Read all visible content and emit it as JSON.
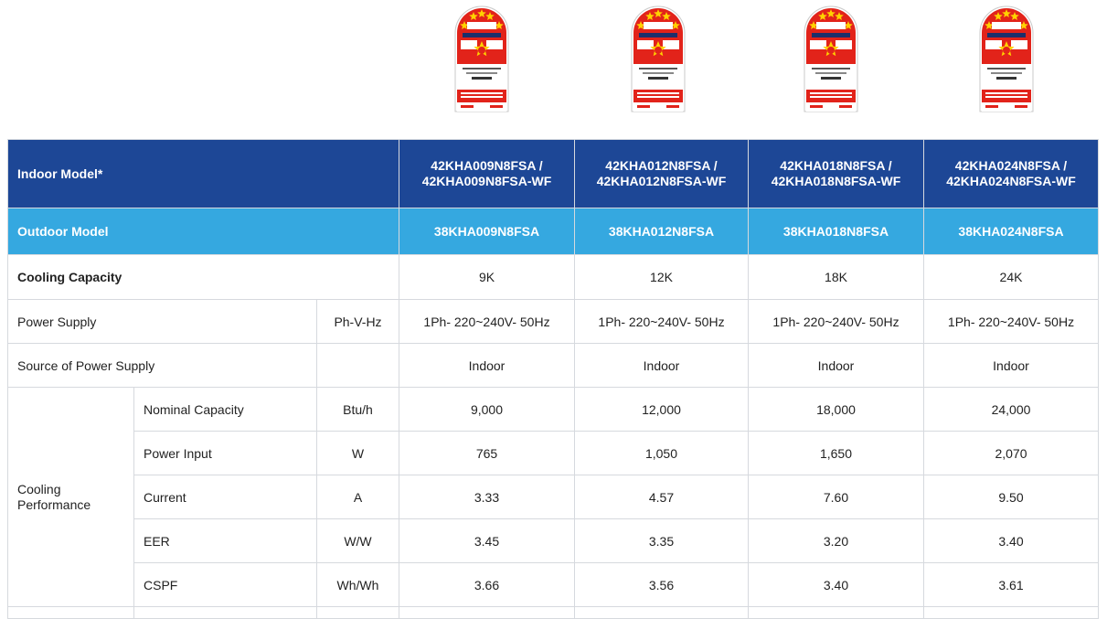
{
  "energy_labels": [
    {
      "name": "energy-label-9k",
      "stars": "5",
      "colors": {
        "red": "#e2231a",
        "yellow": "#ffd200"
      }
    },
    {
      "name": "energy-label-12k",
      "stars": "5"
    },
    {
      "name": "energy-label-18k",
      "stars": "5"
    },
    {
      "name": "energy-label-24k",
      "stars": "5"
    }
  ],
  "colors": {
    "header_dark": "#1d4796",
    "header_light": "#35a8e0",
    "border": "#d6d9de"
  },
  "table": {
    "indoor": {
      "label": "Indoor Model*",
      "values": [
        [
          "42KHA009N8FSA /",
          "42KHA009N8FSA-WF"
        ],
        [
          "42KHA012N8FSA /",
          "42KHA012N8FSA-WF"
        ],
        [
          "42KHA018N8FSA /",
          "42KHA018N8FSA-WF"
        ],
        [
          "42KHA024N8FSA /",
          "42KHA024N8FSA-WF"
        ]
      ]
    },
    "outdoor": {
      "label": "Outdoor Model",
      "values": [
        "38KHA009N8FSA",
        "38KHA012N8FSA",
        "38KHA018N8FSA",
        "38KHA024N8FSA"
      ]
    },
    "cooling_capacity": {
      "label": "Cooling Capacity",
      "values": [
        "9K",
        "12K",
        "18K",
        "24K"
      ]
    },
    "power_supply": {
      "label": "Power Supply",
      "unit": "Ph-V-Hz",
      "values": [
        "1Ph- 220~240V- 50Hz",
        "1Ph- 220~240V- 50Hz",
        "1Ph- 220~240V- 50Hz",
        "1Ph- 220~240V- 50Hz"
      ]
    },
    "source_power": {
      "label": "Source of Power Supply",
      "unit": "",
      "values": [
        "Indoor",
        "Indoor",
        "Indoor",
        "Indoor"
      ]
    },
    "cooling_performance": {
      "group_label_line1": "Cooling",
      "group_label_line2": "Performance",
      "rows": [
        {
          "label": "Nominal Capacity",
          "unit": "Btu/h",
          "values": [
            "9,000",
            "12,000",
            "18,000",
            "24,000"
          ]
        },
        {
          "label": "Power Input",
          "unit": "W",
          "values": [
            "765",
            "1,050",
            "1,650",
            "2,070"
          ]
        },
        {
          "label": "Current",
          "unit": "A",
          "values": [
            "3.33",
            "4.57",
            "7.60",
            "9.50"
          ]
        },
        {
          "label": "EER",
          "unit": "W/W",
          "values": [
            "3.45",
            "3.35",
            "3.20",
            "3.40"
          ]
        },
        {
          "label": "CSPF",
          "unit": "Wh/Wh",
          "values": [
            "3.66",
            "3.56",
            "3.40",
            "3.61"
          ]
        }
      ]
    }
  }
}
